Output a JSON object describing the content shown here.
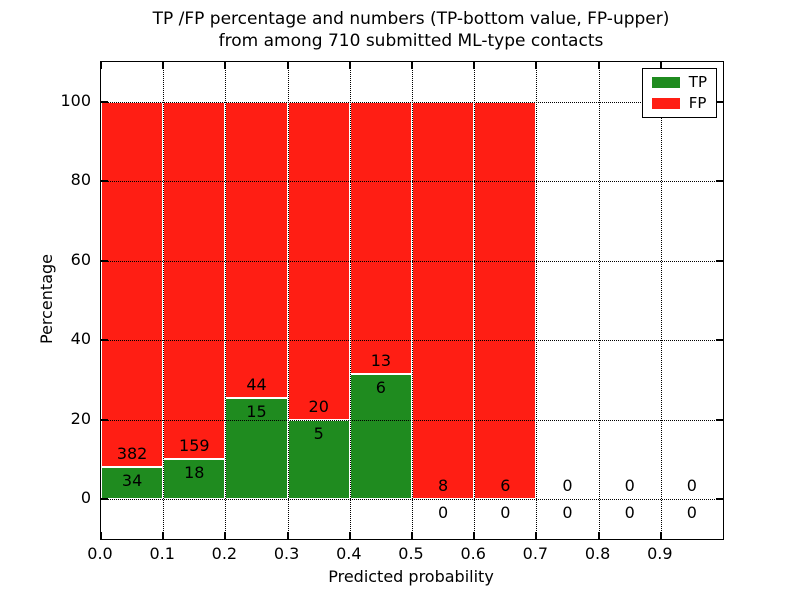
{
  "title": {
    "line1": "TP /FP percentage and numbers (TP-bottom value, FP-upper)",
    "line2": "from among 710 submitted ML-type contacts"
  },
  "chart_data": {
    "type": "bar",
    "stacked": true,
    "title": "TP /FP percentage and numbers (TP-bottom value, FP-upper) from among 710 submitted ML-type contacts",
    "xlabel": "Predicted probability",
    "ylabel": "Percentage",
    "xlim": [
      0.0,
      1.0
    ],
    "ylim": [
      -10,
      110
    ],
    "x_tick_labels": [
      "0.0",
      "0.1",
      "0.2",
      "0.3",
      "0.4",
      "0.5",
      "0.6",
      "0.7",
      "0.8",
      "0.9"
    ],
    "y_tick_values": [
      0,
      20,
      40,
      60,
      80,
      100
    ],
    "grid_style": "dotted",
    "bar_width": 0.1,
    "total_contacts": 710,
    "colors": {
      "tp": "#1f8b1f",
      "fp": "#ff1e14",
      "edge": "#ffffff",
      "grid": "#000000",
      "axis": "#000000",
      "text": "#000000"
    },
    "legend": {
      "position": "upper-right",
      "entries": [
        {
          "label": "TP",
          "color_key": "tp"
        },
        {
          "label": "FP",
          "color_key": "fp"
        }
      ]
    },
    "bins": [
      {
        "range": [
          0.0,
          0.1
        ],
        "tp": 34,
        "fp": 382
      },
      {
        "range": [
          0.1,
          0.2
        ],
        "tp": 18,
        "fp": 159
      },
      {
        "range": [
          0.2,
          0.3
        ],
        "tp": 15,
        "fp": 44
      },
      {
        "range": [
          0.3,
          0.4
        ],
        "tp": 5,
        "fp": 20
      },
      {
        "range": [
          0.4,
          0.5
        ],
        "tp": 6,
        "fp": 13
      },
      {
        "range": [
          0.5,
          0.6
        ],
        "tp": 0,
        "fp": 8
      },
      {
        "range": [
          0.6,
          0.7
        ],
        "tp": 0,
        "fp": 6
      },
      {
        "range": [
          0.7,
          0.8
        ],
        "tp": 0,
        "fp": 0
      },
      {
        "range": [
          0.8,
          0.9
        ],
        "tp": 0,
        "fp": 0
      },
      {
        "range": [
          0.9,
          1.0
        ],
        "tp": 0,
        "fp": 0
      }
    ]
  }
}
